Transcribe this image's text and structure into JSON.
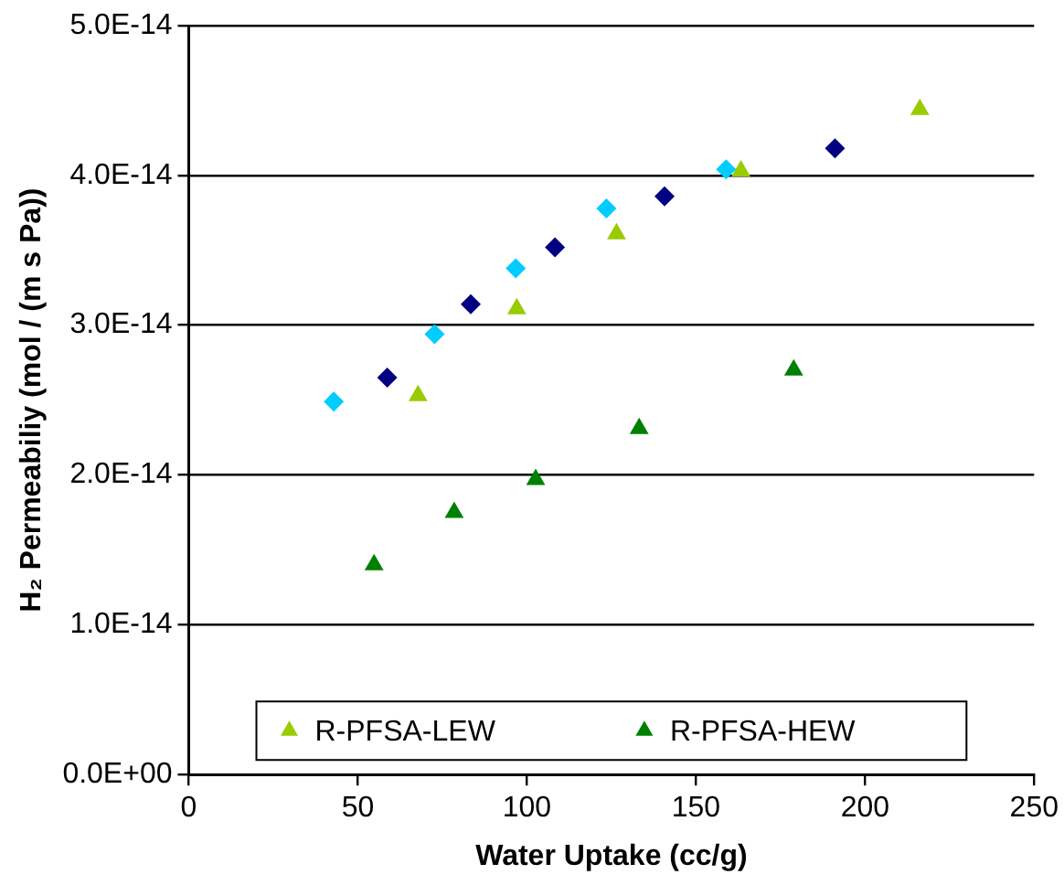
{
  "chart_data": {
    "type": "scatter",
    "xlabel": "Water Uptake (cc/g)",
    "ylabel": "H₂ Permeabiliy (mol / (m s Pa))",
    "xlim": [
      0,
      250
    ],
    "xticks": [
      0,
      50,
      100,
      150,
      200,
      250
    ],
    "ylim": [
      0,
      5e-14
    ],
    "yticks": [
      {
        "value": 0,
        "label": "0.0E+00"
      },
      {
        "value": 1e-14,
        "label": "1.0E-14"
      },
      {
        "value": 2e-14,
        "label": "2.0E-14"
      },
      {
        "value": 3e-14,
        "label": "3.0E-14"
      },
      {
        "value": 4e-14,
        "label": "4.0E-14"
      },
      {
        "value": 5e-14,
        "label": "5.0E-14"
      }
    ],
    "grid": "y",
    "legend": "bottom",
    "series": [
      {
        "color": "#000080",
        "marker": "diamond",
        "x": [
          58.7,
          83.4,
          108.3,
          140.7,
          191.1
        ],
        "values": [
          2.65e-14,
          3.14e-14,
          3.52e-14,
          3.86e-14,
          4.18e-14
        ]
      },
      {
        "color": "#00ccff",
        "marker": "diamond",
        "x": [
          42.9,
          72.7,
          96.7,
          123.5,
          158.9
        ],
        "values": [
          2.49e-14,
          2.94e-14,
          3.38e-14,
          3.78e-14,
          4.04e-14
        ]
      },
      {
        "name": "R-PFSA-LEW",
        "color": "#99cc00",
        "marker": "triangle",
        "x": [
          67.8,
          97,
          126.5,
          163.3,
          216.2
        ],
        "values": [
          2.53e-14,
          3.11e-14,
          3.61e-14,
          4.03e-14,
          4.44e-14
        ]
      },
      {
        "name": "R-PFSA-HEW",
        "color": "#008000",
        "marker": "triangle",
        "x": [
          54.8,
          78.5,
          102.6,
          133.2,
          178.9
        ],
        "values": [
          1.4e-14,
          1.75e-14,
          1.97e-14,
          2.31e-14,
          2.7e-14
        ]
      }
    ]
  }
}
